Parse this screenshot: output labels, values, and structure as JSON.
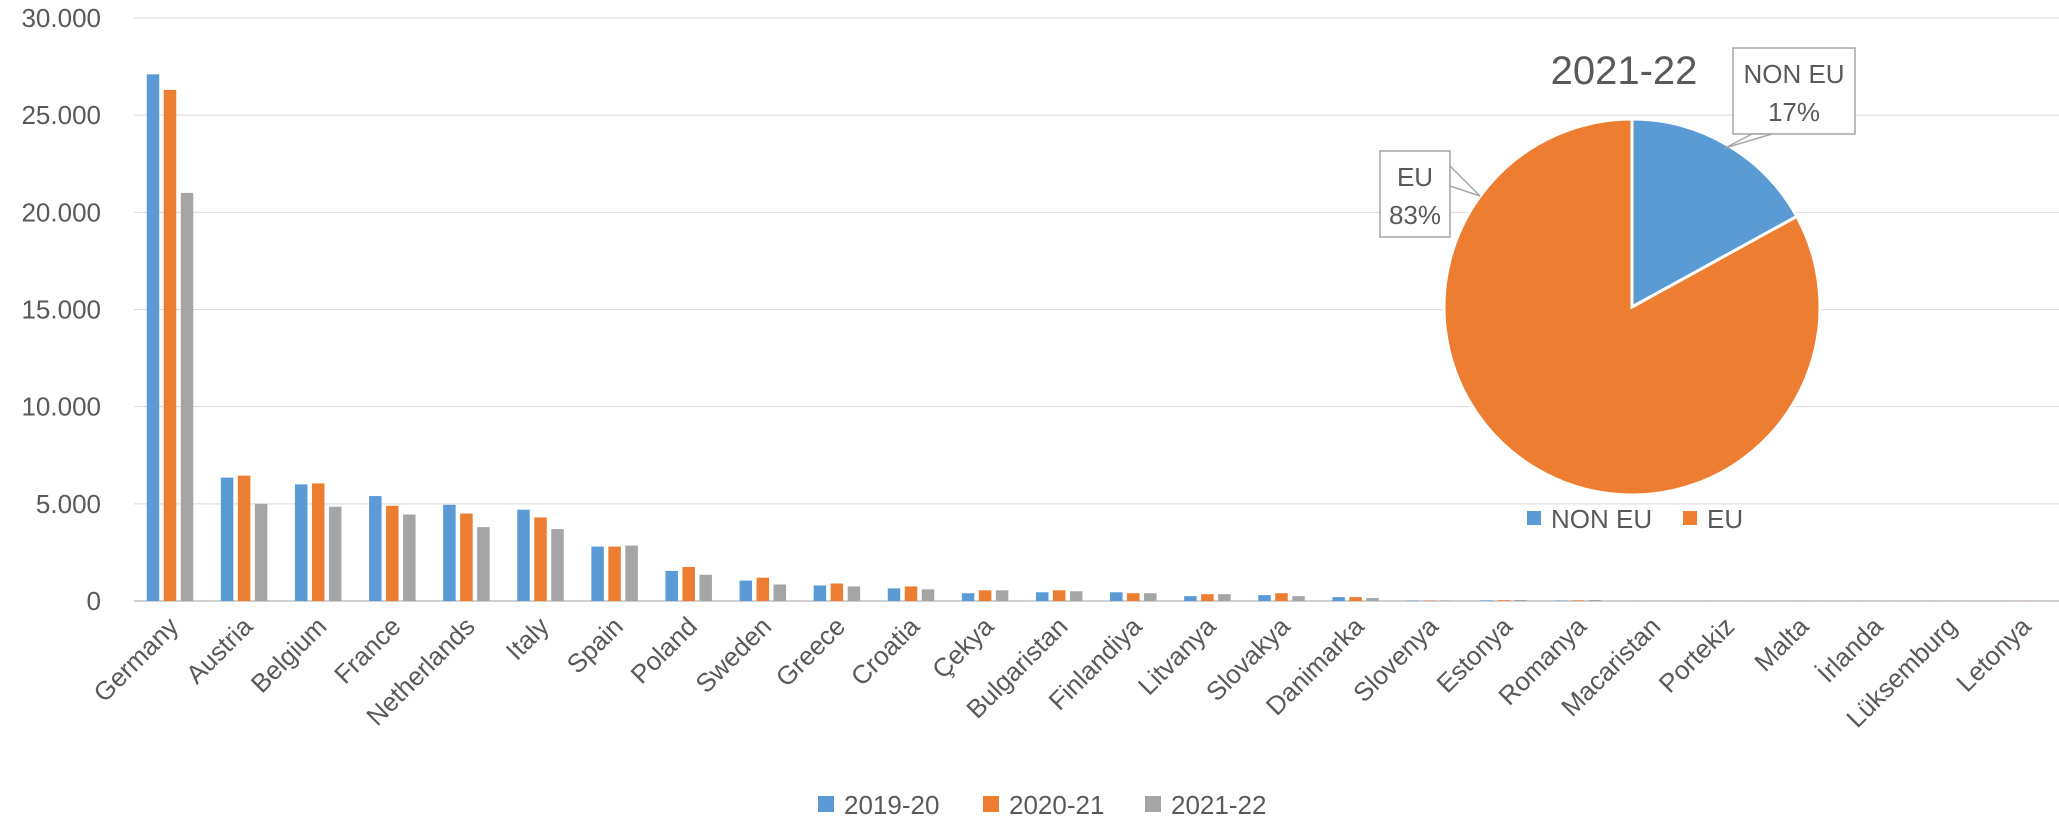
{
  "chart_data": [
    {
      "type": "bar",
      "categories": [
        "Germany",
        "Austria",
        "Belgium",
        "France",
        "Netherlands",
        "Italy",
        "Spain",
        "Poland",
        "Sweden",
        "Greece",
        "Croatia",
        "Çekya",
        "Bulgaristan",
        "Finlandiya",
        "Litvanya",
        "Slovakya",
        "Danimarka",
        "Slovenya",
        "Estonya",
        "Romanya",
        "Macaristan",
        "Portekiz",
        "Malta",
        "İrlanda",
        "Lüksemburg",
        "Letonya"
      ],
      "series": [
        {
          "name": "2019-20",
          "color": "#5b9bd5",
          "values": [
            27100,
            6350,
            6000,
            5400,
            4950,
            4700,
            2800,
            1550,
            1050,
            800,
            650,
            400,
            450,
            450,
            250,
            300,
            200,
            20,
            30,
            20,
            5,
            5,
            5,
            5,
            5,
            5
          ]
        },
        {
          "name": "2020-21",
          "color": "#ed7d31",
          "values": [
            26300,
            6450,
            6050,
            4900,
            4500,
            4300,
            2800,
            1750,
            1200,
            900,
            750,
            550,
            550,
            400,
            350,
            400,
            200,
            20,
            40,
            30,
            5,
            5,
            5,
            5,
            5,
            5
          ]
        },
        {
          "name": "2021-22",
          "color": "#a5a5a5",
          "values": [
            21000,
            5000,
            4850,
            4450,
            3800,
            3700,
            2850,
            1350,
            850,
            750,
            600,
            550,
            500,
            400,
            350,
            250,
            150,
            20,
            50,
            50,
            5,
            5,
            5,
            5,
            5,
            5
          ]
        }
      ],
      "ylim": [
        0,
        30000
      ],
      "yticks": [
        "0",
        "5.000",
        "10.000",
        "15.000",
        "20.000",
        "25.000",
        "30.000"
      ],
      "ytick_values": [
        0,
        5000,
        10000,
        15000,
        20000,
        25000,
        30000
      ],
      "grid": true,
      "legend": "bottom-center"
    },
    {
      "type": "pie",
      "title": "2021-22",
      "slices": [
        {
          "name": "NON EU",
          "value": 17,
          "label": "NON EU",
          "pct": "17%",
          "color": "#5b9bd5"
        },
        {
          "name": "EU",
          "value": 83,
          "label": "EU",
          "pct": "83%",
          "color": "#ed7d31"
        }
      ],
      "legend": "bottom"
    }
  ]
}
